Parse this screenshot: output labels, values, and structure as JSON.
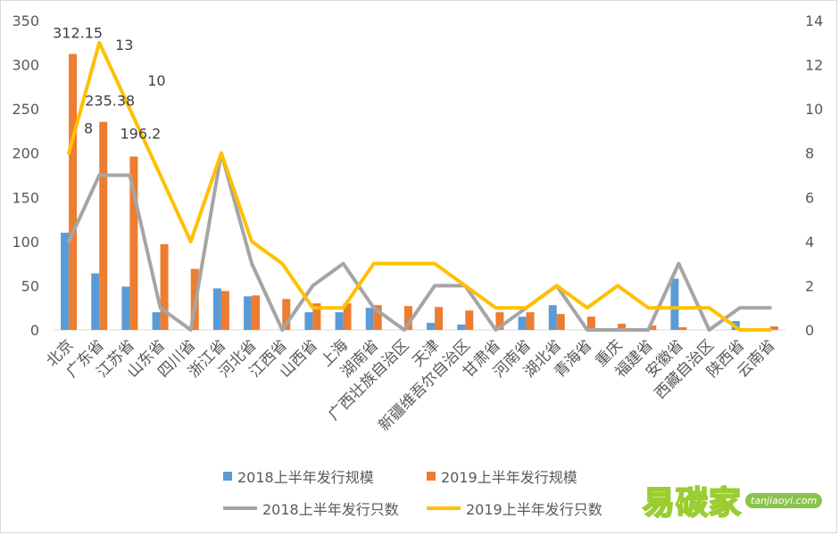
{
  "chart_data": {
    "type": "bar",
    "categories": [
      "北京",
      "广东省",
      "江苏省",
      "山东省",
      "四川省",
      "浙江省",
      "河北省",
      "江西省",
      "山西省",
      "上海",
      "湖南省",
      "广西壮族自治区",
      "天津",
      "新疆维吾尔自治区",
      "甘肃省",
      "河南省",
      "湖北省",
      "青海省",
      "重庆",
      "福建省",
      "安徽省",
      "西藏自治区",
      "陕西省",
      "云南省"
    ],
    "y_left": {
      "ylim": [
        0,
        350
      ],
      "ticks": [
        0,
        50,
        100,
        150,
        200,
        250,
        300,
        350
      ]
    },
    "y_right": {
      "ylim": [
        0,
        14
      ],
      "ticks": [
        0,
        2,
        4,
        6,
        8,
        10,
        12,
        14
      ]
    },
    "series": [
      {
        "name": "2018上半年发行规模",
        "type": "bar",
        "axis": "left",
        "color": "#5b9bd5",
        "values": [
          110,
          64,
          49,
          20,
          0,
          47,
          38,
          0,
          20,
          20,
          25,
          0,
          8,
          6,
          0,
          15,
          28,
          0,
          0,
          0,
          58,
          0,
          10,
          0
        ]
      },
      {
        "name": "2019上半年发行规模",
        "type": "bar",
        "axis": "left",
        "color": "#ed7d31",
        "values": [
          312.15,
          235.38,
          196.2,
          97,
          69,
          44,
          39,
          35,
          30,
          30,
          28,
          27,
          26,
          22,
          20,
          20,
          18,
          15,
          7,
          5,
          3,
          0,
          0,
          4
        ]
      },
      {
        "name": "2018上半年发行只数",
        "type": "line",
        "axis": "right",
        "color": "#a5a5a5",
        "values": [
          4,
          7,
          7,
          1,
          0,
          8,
          3,
          0,
          2,
          3,
          1,
          0,
          2,
          2,
          0,
          1,
          2,
          0,
          0,
          0,
          3,
          0,
          1,
          1
        ]
      },
      {
        "name": "2019上半年发行只数",
        "type": "line",
        "axis": "right",
        "color": "#ffc000",
        "values": [
          8,
          13,
          10,
          7,
          4,
          8,
          4,
          3,
          1,
          1,
          3,
          3,
          3,
          2,
          1,
          1,
          2,
          1,
          2,
          1,
          1,
          1,
          0,
          0
        ]
      }
    ],
    "data_labels": [
      {
        "text": "312.15",
        "series": 1,
        "index": 0
      },
      {
        "text": "235.38",
        "series": 1,
        "index": 1
      },
      {
        "text": "196.2",
        "series": 1,
        "index": 2
      },
      {
        "text": "8",
        "series": 3,
        "index": 0
      },
      {
        "text": "13",
        "series": 3,
        "index": 1
      },
      {
        "text": "10",
        "series": 3,
        "index": 2
      }
    ],
    "legend_position": "bottom",
    "grid": false
  },
  "watermark": {
    "text": "易碳家",
    "url": "tanjiaoyi.com"
  }
}
